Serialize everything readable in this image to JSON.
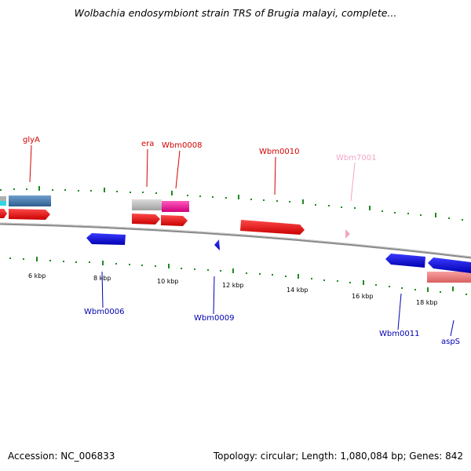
{
  "title": "Wolbachia endosymbiont strain TRS of Brugia malayi, complete...",
  "footer": {
    "accession": "Accession: NC_006833",
    "summary": "Topology: circular; Length: 1,080,084 bp; Genes: 842"
  },
  "colors": {
    "forward_label": "#d40000",
    "reverse_label": "#0000b4",
    "pseudo_label": "#f0a0c0",
    "forward_gene": "#ff0000",
    "reverse_gene": "#0000ff",
    "tick_mark": "#1f8a1f",
    "backbone": "#7f7f7f"
  },
  "forward_labels": [
    "glyA",
    "era",
    "Wbm0008",
    "Wbm0010",
    "Wbm7001"
  ],
  "reverse_labels": [
    "Wbm0006",
    "Wbm0009",
    "Wbm0011",
    "aspS"
  ],
  "scale_labels": [
    "6 kbp",
    "8 kbp",
    "10 kbp",
    "12 kbp",
    "14 kbp",
    "16 kbp",
    "18 kbp"
  ]
}
